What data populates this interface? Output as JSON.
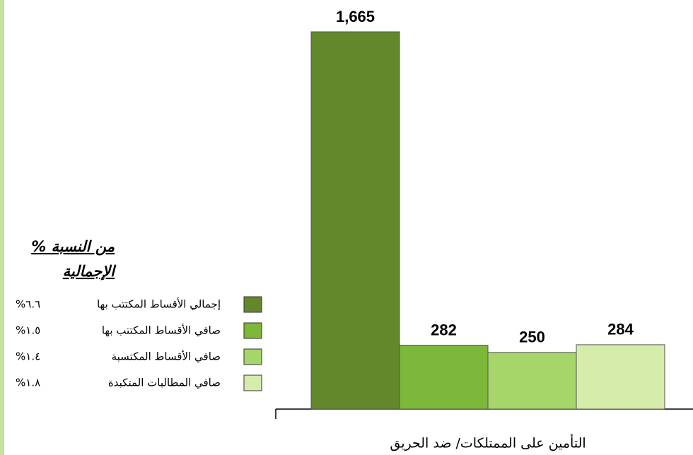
{
  "chart_data": {
    "type": "bar",
    "categories": [
      "التأمين على الممتلكات/ ضد الحريق"
    ],
    "legend_title": [
      "% من النسبة",
      "الإجمالية"
    ],
    "series": [
      {
        "name": "إجمالي الأقساط المكتتب بها",
        "color": "#63882c",
        "share": "%٦.٦",
        "values": [
          1665
        ],
        "value_labels": [
          "1,665"
        ]
      },
      {
        "name": "صافي الأقساط المكتتب بها",
        "color": "#7db83a",
        "share": "%١.٥",
        "values": [
          282
        ],
        "value_labels": [
          "282"
        ]
      },
      {
        "name": "صافي الأقساط المكتسبة",
        "color": "#a6d66a",
        "share": "%١.٤",
        "values": [
          250
        ],
        "value_labels": [
          "250"
        ]
      },
      {
        "name": "صافي المطالبات المتكبدة",
        "color": "#d6ecaa",
        "share": "%١.٨",
        "values": [
          284
        ],
        "value_labels": [
          "284"
        ]
      }
    ]
  }
}
